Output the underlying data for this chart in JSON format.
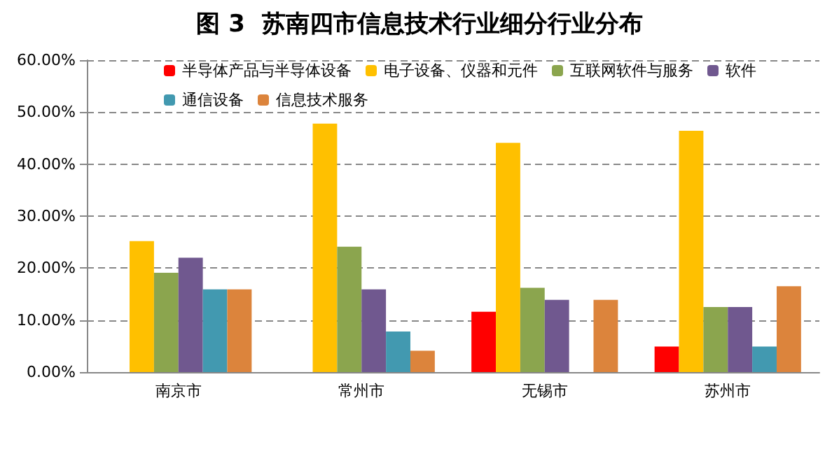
{
  "chart_data": {
    "type": "bar",
    "title": "图 3  苏南四市信息技术行业细分行业分布",
    "categories": [
      "南京市",
      "常州市",
      "无锡市",
      "苏州市"
    ],
    "series": [
      {
        "name": "半导体产品与半导体设备",
        "color": "#ff0000",
        "values": [
          0,
          0,
          11.6,
          4.9
        ]
      },
      {
        "name": "电子设备、仪器和元件",
        "color": "#ffc000",
        "values": [
          25.2,
          47.8,
          44.1,
          46.4
        ]
      },
      {
        "name": "互联网软件与服务",
        "color": "#8ba54e",
        "values": [
          19.1,
          24.1,
          16.2,
          12.5
        ]
      },
      {
        "name": "软件",
        "color": "#70588f",
        "values": [
          22.0,
          15.9,
          13.9,
          12.5
        ]
      },
      {
        "name": "通信设备",
        "color": "#4299b0",
        "values": [
          15.9,
          7.8,
          0,
          4.9
        ]
      },
      {
        "name": "信息技术服务",
        "color": "#dc843c",
        "values": [
          15.9,
          4.1,
          13.9,
          16.5
        ]
      }
    ],
    "ylim": [
      0,
      60
    ],
    "yticks": [
      {
        "value": 0,
        "label": "0.00%"
      },
      {
        "value": 10,
        "label": "10.00%"
      },
      {
        "value": 20,
        "label": "20.00%"
      },
      {
        "value": 30,
        "label": "30.00%"
      },
      {
        "value": 40,
        "label": "40.00%"
      },
      {
        "value": 50,
        "label": "50.00%"
      },
      {
        "value": 60,
        "label": "60.00%"
      }
    ],
    "grid": "y",
    "legend": "top"
  }
}
